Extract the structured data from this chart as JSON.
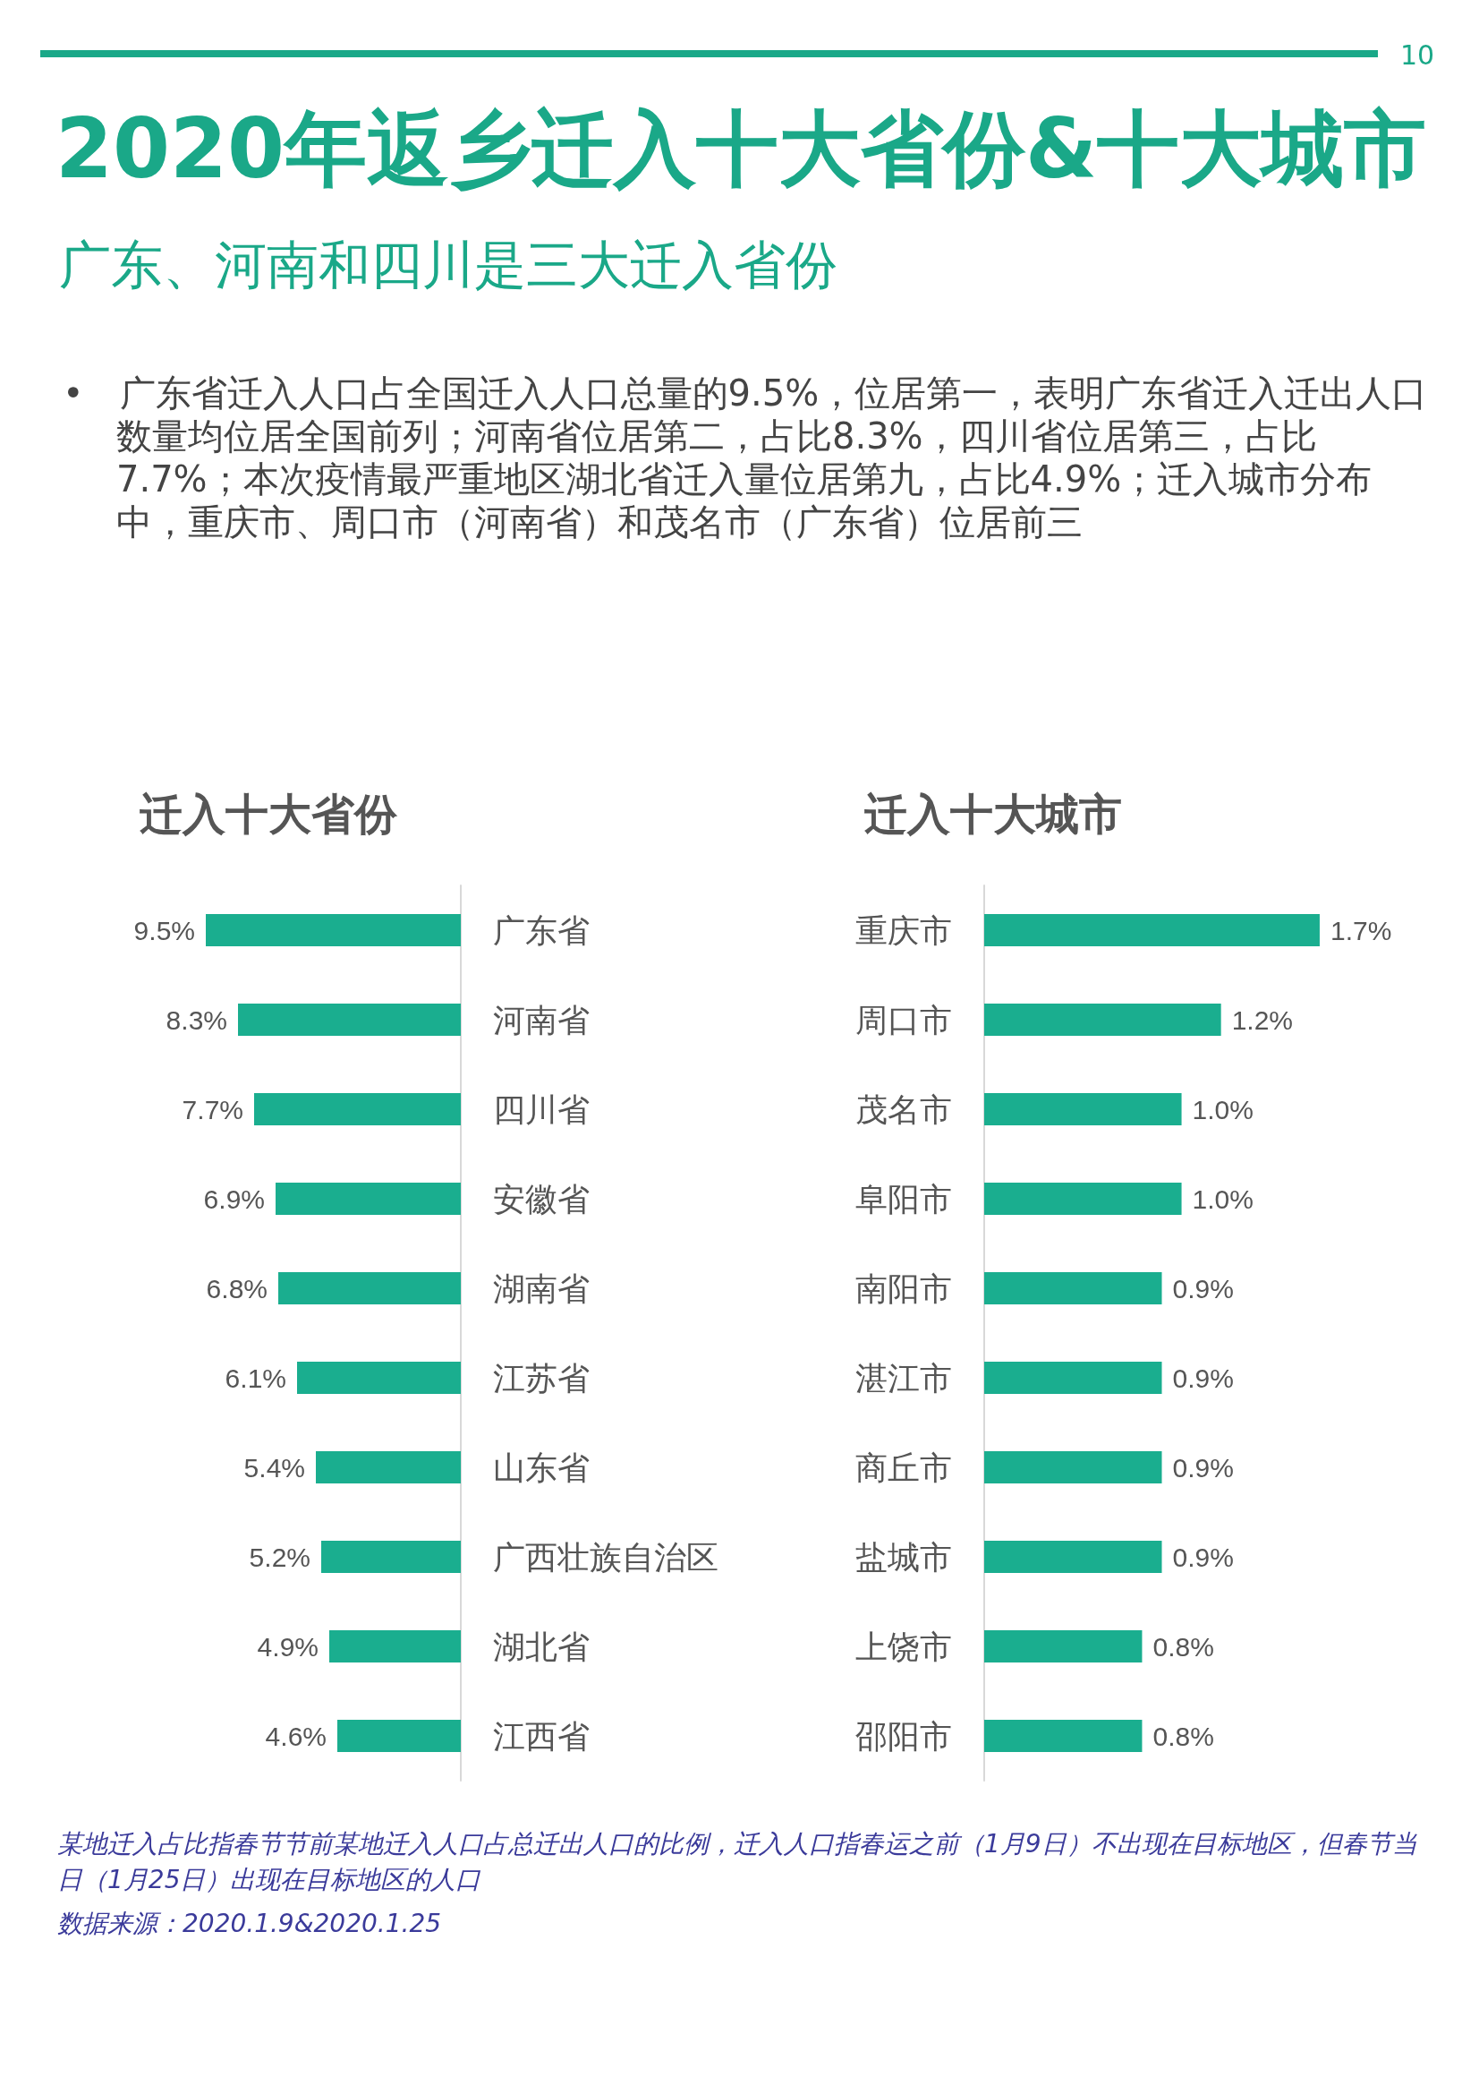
{
  "chart_data": [
    {
      "type": "other",
      "title": "2020年返乡迁入十大省份&十大城市",
      "subtitle": "广东、河南和四川是三大迁入省份",
      "annotations": [
        "10",
        "• 广东省迁入人口占全国迁入人口总量的9.5%，位居第一，表明广东省迁入迁出人口数量均位居全国前列；河南省位居第二，占比8.3%，四川省位居第三，占比7.7%；本次疫情最严重地区湖北省迁入量位居第九，占比4.9%；迁入城市分布中，重庆市、周口市（河南省）和茂名市（广东省）位居前三",
        "某地迁入占比指春节节前某地迁入人口占总迁出人口的比例，迁入人口指春运之前（1月9日）不出现在目标地区，但春节当日（1月25日）出现在目标地区的人口",
        "数据来源：2020.1.9&2020.1.25"
      ]
    },
    {
      "type": "bar",
      "orientation": "horizontal",
      "title": "迁入十大省份",
      "color": "#1aae8f",
      "categories": [
        "广东省",
        "河南省",
        "四川省",
        "安徽省",
        "湖南省",
        "江苏省",
        "山东省",
        "广西壮族自治区",
        "湖北省",
        "江西省"
      ],
      "values": [
        9.5,
        8.3,
        7.7,
        6.9,
        6.8,
        6.1,
        5.4,
        5.2,
        4.9,
        4.6
      ],
      "value_labels": [
        "9.5%",
        "8.3%",
        "7.7%",
        "6.9%",
        "6.8%",
        "6.1%",
        "5.4%",
        "5.2%",
        "4.9%",
        "4.6%"
      ]
    },
    {
      "type": "bar",
      "orientation": "horizontal",
      "title": "迁入十大城市",
      "color": "#1aae8f",
      "categories": [
        "重庆市",
        "周口市",
        "茂名市",
        "阜阳市",
        "南阳市",
        "湛江市",
        "商丘市",
        "盐城市",
        "上饶市",
        "邵阳市"
      ],
      "values": [
        1.7,
        1.2,
        1.0,
        1.0,
        0.9,
        0.9,
        0.9,
        0.9,
        0.8,
        0.8
      ],
      "value_labels": [
        "1.7%",
        "1.2%",
        "1.0%",
        "1.0%",
        "0.9%",
        "0.9%",
        "0.9%",
        "0.9%",
        "0.8%",
        "0.8%"
      ]
    }
  ]
}
